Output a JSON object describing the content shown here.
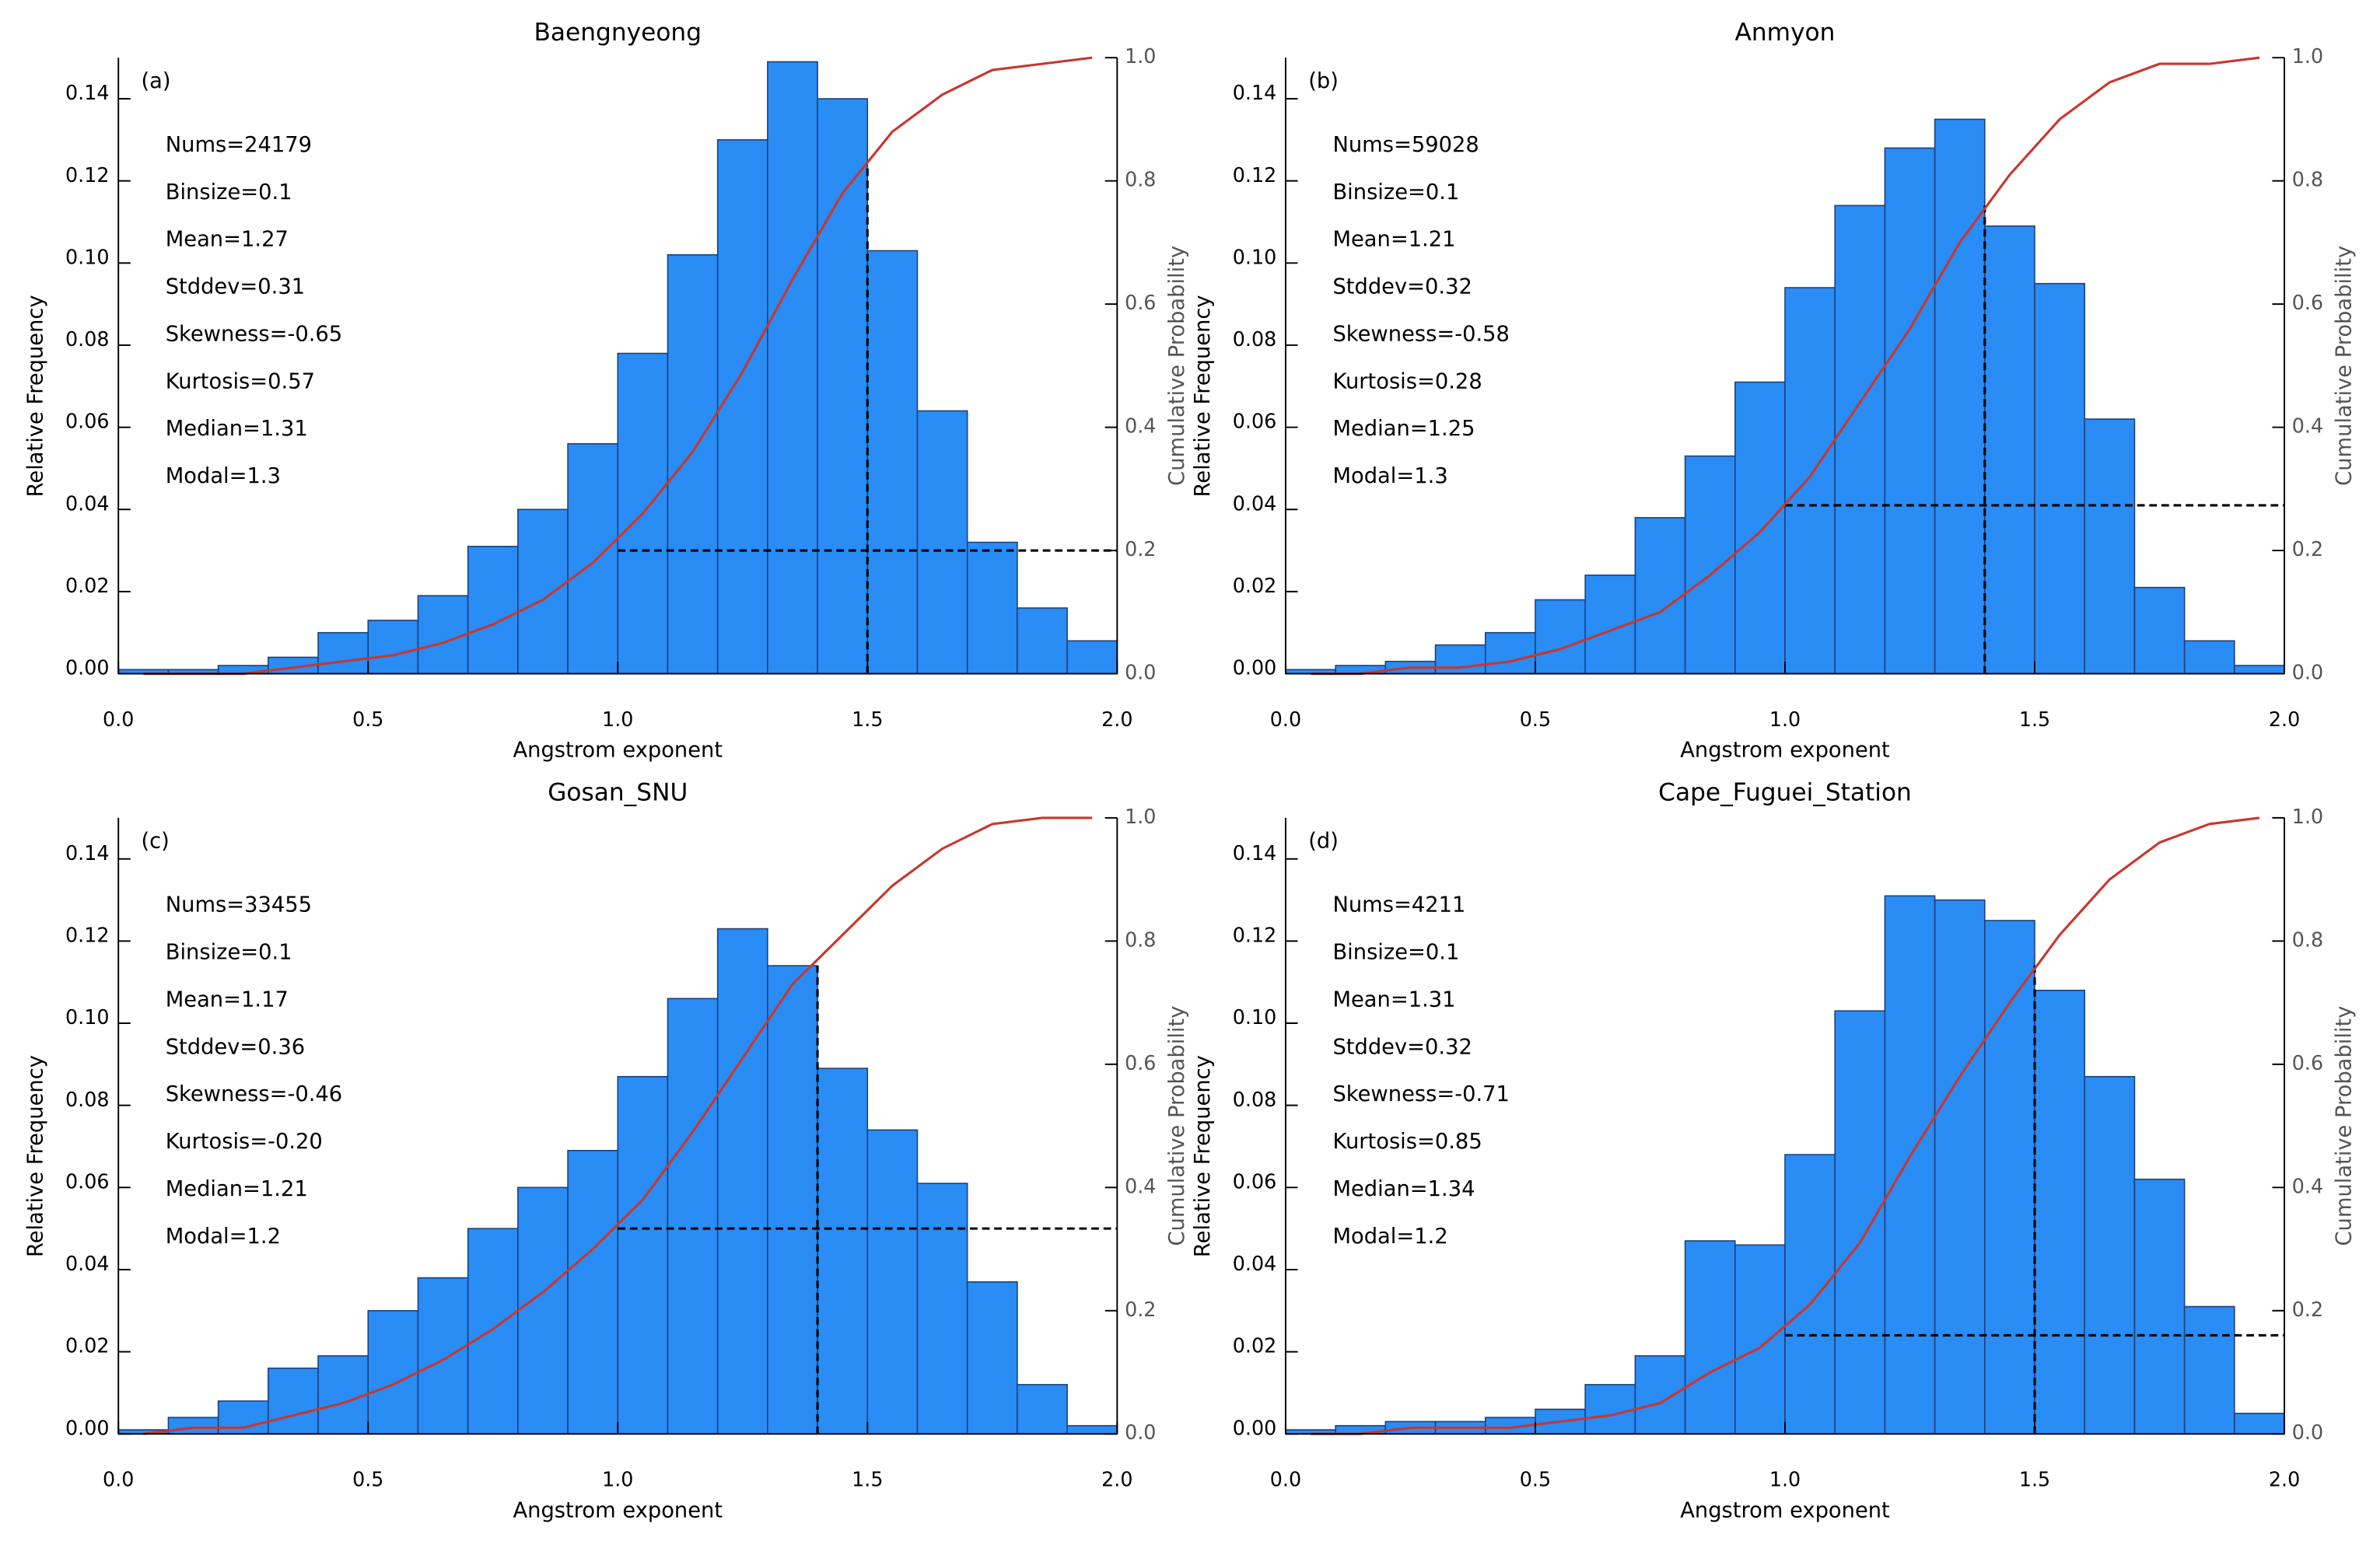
{
  "chart_data": [
    {
      "type": "histogram",
      "title": "Baengnyeong",
      "panel_label": "(a)",
      "annotations": [
        "Nums=24179",
        "Binsize=0.1",
        "Mean=1.27",
        "Stddev=0.31",
        "Skewness=-0.65",
        "Kurtosis=0.57",
        "Median=1.31",
        "Modal=1.3"
      ],
      "xlabel": "Angstrom exponent",
      "ylabel": "Relative Frequency",
      "y2label": "Cumulative Probability",
      "bins": [
        0,
        0.1,
        0.2,
        0.3,
        0.4,
        0.5,
        0.6,
        0.7,
        0.8,
        0.9,
        1.0,
        1.1,
        1.2,
        1.3,
        1.4,
        1.5,
        1.6,
        1.7,
        1.8,
        1.9,
        2.0
      ],
      "values": [
        0.001,
        0.001,
        0.002,
        0.004,
        0.01,
        0.013,
        0.019,
        0.031,
        0.04,
        0.056,
        0.078,
        0.102,
        0.13,
        0.149,
        0.14,
        0.103,
        0.064,
        0.032,
        0.016,
        0.008
      ],
      "color": "#2a8cf5",
      "cumulative": {
        "axis": "y2",
        "color": "#c8372d",
        "x": [
          0.05,
          0.15,
          0.25,
          0.35,
          0.45,
          0.55,
          0.65,
          0.75,
          0.85,
          0.95,
          1.05,
          1.15,
          1.25,
          1.35,
          1.45,
          1.55,
          1.65,
          1.75,
          1.85,
          1.95
        ],
        "values": [
          0,
          0,
          0,
          0.01,
          0.02,
          0.03,
          0.05,
          0.08,
          0.12,
          0.18,
          0.26,
          0.36,
          0.49,
          0.64,
          0.78,
          0.88,
          0.94,
          0.98,
          0.99,
          1.0
        ]
      },
      "dashed_lines": [
        {
          "x": [
            1.0,
            2.0
          ],
          "y": [
            0.03,
            0.03
          ]
        },
        {
          "x": [
            1.5,
            1.5
          ],
          "y": [
            0,
            0.123
          ]
        }
      ],
      "xlim": [
        0,
        2
      ],
      "ylim": [
        0,
        0.15
      ],
      "y2lim": [
        0,
        1.0
      ],
      "xticks": [
        {
          "value": 0,
          "label": "0.0"
        },
        {
          "value": 0.5,
          "label": "0.5"
        },
        {
          "value": 1,
          "label": "1.0"
        },
        {
          "value": 1.5,
          "label": "1.5"
        },
        {
          "value": 2,
          "label": "2.0"
        }
      ],
      "yticks": [
        {
          "value": 0,
          "label": "0.00"
        },
        {
          "value": 0.02,
          "label": "0.02"
        },
        {
          "value": 0.04,
          "label": "0.04"
        },
        {
          "value": 0.06,
          "label": "0.06"
        },
        {
          "value": 0.08,
          "label": "0.08"
        },
        {
          "value": 0.1,
          "label": "0.10"
        },
        {
          "value": 0.12,
          "label": "0.12"
        },
        {
          "value": 0.14,
          "label": "0.14"
        }
      ],
      "y2ticks": [
        {
          "value": 0,
          "label": "0.0"
        },
        {
          "value": 0.2,
          "label": "0.2"
        },
        {
          "value": 0.4,
          "label": "0.4"
        },
        {
          "value": 0.6,
          "label": "0.6"
        },
        {
          "value": 0.8,
          "label": "0.8"
        },
        {
          "value": 1,
          "label": "1.0"
        }
      ]
    },
    {
      "type": "histogram",
      "title": "Anmyon",
      "panel_label": "(b)",
      "annotations": [
        "Nums=59028",
        "Binsize=0.1",
        "Mean=1.21",
        "Stddev=0.32",
        "Skewness=-0.58",
        "Kurtosis=0.28",
        "Median=1.25",
        "Modal=1.3"
      ],
      "xlabel": "Angstrom exponent",
      "ylabel": "Relative Frequency",
      "y2label": "Cumulative Probability",
      "bins": [
        0,
        0.1,
        0.2,
        0.3,
        0.4,
        0.5,
        0.6,
        0.7,
        0.8,
        0.9,
        1.0,
        1.1,
        1.2,
        1.3,
        1.4,
        1.5,
        1.6,
        1.7,
        1.8,
        1.9,
        2.0
      ],
      "values": [
        0.001,
        0.002,
        0.003,
        0.007,
        0.01,
        0.018,
        0.024,
        0.038,
        0.053,
        0.071,
        0.094,
        0.114,
        0.128,
        0.135,
        0.109,
        0.095,
        0.062,
        0.021,
        0.008,
        0.002
      ],
      "color": "#2a8cf5",
      "cumulative": {
        "axis": "y2",
        "color": "#c8372d",
        "x": [
          0.05,
          0.15,
          0.25,
          0.35,
          0.45,
          0.55,
          0.65,
          0.75,
          0.85,
          0.95,
          1.05,
          1.15,
          1.25,
          1.35,
          1.45,
          1.55,
          1.65,
          1.75,
          1.85,
          1.95
        ],
        "values": [
          0,
          0,
          0.01,
          0.01,
          0.02,
          0.04,
          0.07,
          0.1,
          0.16,
          0.23,
          0.32,
          0.44,
          0.56,
          0.7,
          0.81,
          0.9,
          0.96,
          0.99,
          0.99,
          1.0
        ]
      },
      "dashed_lines": [
        {
          "x": [
            1.0,
            2.0
          ],
          "y": [
            0.041,
            0.041
          ]
        },
        {
          "x": [
            1.4,
            1.4
          ],
          "y": [
            0,
            0.114
          ]
        }
      ],
      "xlim": [
        0,
        2
      ],
      "ylim": [
        0,
        0.15
      ],
      "y2lim": [
        0,
        1.0
      ],
      "xticks": [
        {
          "value": 0,
          "label": "0.0"
        },
        {
          "value": 0.5,
          "label": "0.5"
        },
        {
          "value": 1,
          "label": "1.0"
        },
        {
          "value": 1.5,
          "label": "1.5"
        },
        {
          "value": 2,
          "label": "2.0"
        }
      ],
      "yticks": [
        {
          "value": 0,
          "label": "0.00"
        },
        {
          "value": 0.02,
          "label": "0.02"
        },
        {
          "value": 0.04,
          "label": "0.04"
        },
        {
          "value": 0.06,
          "label": "0.06"
        },
        {
          "value": 0.08,
          "label": "0.08"
        },
        {
          "value": 0.1,
          "label": "0.10"
        },
        {
          "value": 0.12,
          "label": "0.12"
        },
        {
          "value": 0.14,
          "label": "0.14"
        }
      ],
      "y2ticks": [
        {
          "value": 0,
          "label": "0.0"
        },
        {
          "value": 0.2,
          "label": "0.2"
        },
        {
          "value": 0.4,
          "label": "0.4"
        },
        {
          "value": 0.6,
          "label": "0.6"
        },
        {
          "value": 0.8,
          "label": "0.8"
        },
        {
          "value": 1,
          "label": "1.0"
        }
      ]
    },
    {
      "type": "histogram",
      "title": "Gosan_SNU",
      "panel_label": "(c)",
      "annotations": [
        "Nums=33455",
        "Binsize=0.1",
        "Mean=1.17",
        "Stddev=0.36",
        "Skewness=-0.46",
        "Kurtosis=-0.20",
        "Median=1.21",
        "Modal=1.2"
      ],
      "xlabel": "Angstrom exponent",
      "ylabel": "Relative Frequency",
      "y2label": "Cumulative Probability",
      "bins": [
        0,
        0.1,
        0.2,
        0.3,
        0.4,
        0.5,
        0.6,
        0.7,
        0.8,
        0.9,
        1.0,
        1.1,
        1.2,
        1.3,
        1.4,
        1.5,
        1.6,
        1.7,
        1.8,
        1.9,
        2.0
      ],
      "values": [
        0.001,
        0.004,
        0.008,
        0.016,
        0.019,
        0.03,
        0.038,
        0.05,
        0.06,
        0.069,
        0.087,
        0.106,
        0.123,
        0.114,
        0.089,
        0.074,
        0.061,
        0.037,
        0.012,
        0.002
      ],
      "color": "#2a8cf5",
      "cumulative": {
        "axis": "y2",
        "color": "#c8372d",
        "x": [
          0.05,
          0.15,
          0.25,
          0.35,
          0.45,
          0.55,
          0.65,
          0.75,
          0.85,
          0.95,
          1.05,
          1.15,
          1.25,
          1.35,
          1.45,
          1.55,
          1.65,
          1.75,
          1.85,
          1.95
        ],
        "values": [
          0,
          0.01,
          0.01,
          0.03,
          0.05,
          0.08,
          0.12,
          0.17,
          0.23,
          0.3,
          0.38,
          0.49,
          0.61,
          0.73,
          0.81,
          0.89,
          0.95,
          0.99,
          1.0,
          1.0
        ]
      },
      "dashed_lines": [
        {
          "x": [
            1.0,
            2.0
          ],
          "y": [
            0.05,
            0.05
          ]
        },
        {
          "x": [
            1.4,
            1.4
          ],
          "y": [
            0,
            0.114
          ]
        }
      ],
      "xlim": [
        0,
        2
      ],
      "ylim": [
        0,
        0.15
      ],
      "y2lim": [
        0,
        1.0
      ],
      "xticks": [
        {
          "value": 0,
          "label": "0.0"
        },
        {
          "value": 0.5,
          "label": "0.5"
        },
        {
          "value": 1,
          "label": "1.0"
        },
        {
          "value": 1.5,
          "label": "1.5"
        },
        {
          "value": 2,
          "label": "2.0"
        }
      ],
      "yticks": [
        {
          "value": 0,
          "label": "0.00"
        },
        {
          "value": 0.02,
          "label": "0.02"
        },
        {
          "value": 0.04,
          "label": "0.04"
        },
        {
          "value": 0.06,
          "label": "0.06"
        },
        {
          "value": 0.08,
          "label": "0.08"
        },
        {
          "value": 0.1,
          "label": "0.10"
        },
        {
          "value": 0.12,
          "label": "0.12"
        },
        {
          "value": 0.14,
          "label": "0.14"
        }
      ],
      "y2ticks": [
        {
          "value": 0,
          "label": "0.0"
        },
        {
          "value": 0.2,
          "label": "0.2"
        },
        {
          "value": 0.4,
          "label": "0.4"
        },
        {
          "value": 0.6,
          "label": "0.6"
        },
        {
          "value": 0.8,
          "label": "0.8"
        },
        {
          "value": 1,
          "label": "1.0"
        }
      ]
    },
    {
      "type": "histogram",
      "title": "Cape_Fuguei_Station",
      "panel_label": "(d)",
      "annotations": [
        "Nums=4211",
        "Binsize=0.1",
        "Mean=1.31",
        "Stddev=0.32",
        "Skewness=-0.71",
        "Kurtosis=0.85",
        "Median=1.34",
        "Modal=1.2"
      ],
      "xlabel": "Angstrom exponent",
      "ylabel": "Relative Frequency",
      "y2label": "Cumulative Probability",
      "bins": [
        0,
        0.1,
        0.2,
        0.3,
        0.4,
        0.5,
        0.6,
        0.7,
        0.8,
        0.9,
        1.0,
        1.1,
        1.2,
        1.3,
        1.4,
        1.5,
        1.6,
        1.7,
        1.8,
        1.9,
        2.0
      ],
      "values": [
        0.001,
        0.002,
        0.003,
        0.003,
        0.004,
        0.006,
        0.012,
        0.019,
        0.047,
        0.046,
        0.068,
        0.103,
        0.131,
        0.13,
        0.125,
        0.108,
        0.087,
        0.062,
        0.031,
        0.005
      ],
      "color": "#2a8cf5",
      "cumulative": {
        "axis": "y2",
        "color": "#c8372d",
        "x": [
          0.05,
          0.15,
          0.25,
          0.35,
          0.45,
          0.55,
          0.65,
          0.75,
          0.85,
          0.95,
          1.05,
          1.15,
          1.25,
          1.35,
          1.45,
          1.55,
          1.65,
          1.75,
          1.85,
          1.95
        ],
        "values": [
          0,
          0,
          0.01,
          0.01,
          0.01,
          0.02,
          0.03,
          0.05,
          0.1,
          0.14,
          0.21,
          0.31,
          0.45,
          0.58,
          0.7,
          0.81,
          0.9,
          0.96,
          0.99,
          1.0
        ]
      },
      "dashed_lines": [
        {
          "x": [
            1.0,
            2.0
          ],
          "y": [
            0.024,
            0.024
          ]
        },
        {
          "x": [
            1.5,
            1.5
          ],
          "y": [
            0,
            0.114
          ]
        }
      ],
      "xlim": [
        0,
        2
      ],
      "ylim": [
        0,
        0.15
      ],
      "y2lim": [
        0,
        1.0
      ],
      "xticks": [
        {
          "value": 0,
          "label": "0.0"
        },
        {
          "value": 0.5,
          "label": "0.5"
        },
        {
          "value": 1,
          "label": "1.0"
        },
        {
          "value": 1.5,
          "label": "1.5"
        },
        {
          "value": 2,
          "label": "2.0"
        }
      ],
      "yticks": [
        {
          "value": 0,
          "label": "0.00"
        },
        {
          "value": 0.02,
          "label": "0.02"
        },
        {
          "value": 0.04,
          "label": "0.04"
        },
        {
          "value": 0.06,
          "label": "0.06"
        },
        {
          "value": 0.08,
          "label": "0.08"
        },
        {
          "value": 0.1,
          "label": "0.10"
        },
        {
          "value": 0.12,
          "label": "0.12"
        },
        {
          "value": 0.14,
          "label": "0.14"
        }
      ],
      "y2ticks": [
        {
          "value": 0,
          "label": "0.0"
        },
        {
          "value": 0.2,
          "label": "0.2"
        },
        {
          "value": 0.4,
          "label": "0.4"
        },
        {
          "value": 0.6,
          "label": "0.6"
        },
        {
          "value": 0.8,
          "label": "0.8"
        },
        {
          "value": 1,
          "label": "1.0"
        }
      ]
    }
  ]
}
